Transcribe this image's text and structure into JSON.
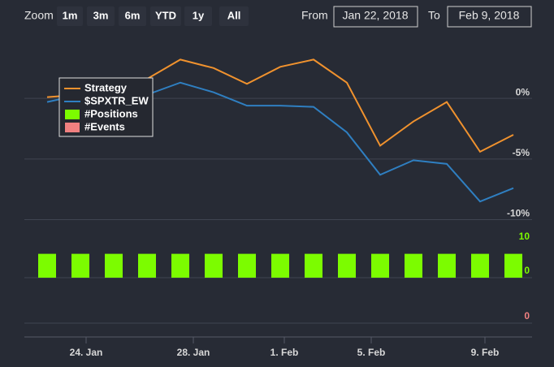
{
  "range_selector": {
    "zoom_label": "Zoom",
    "buttons": [
      "1m",
      "3m",
      "6m",
      "YTD",
      "1y",
      "All"
    ],
    "from_label": "From",
    "from": "Jan 22, 2018",
    "to_label": "To",
    "to": "Feb 9, 2018"
  },
  "chart_data": {
    "type": "line",
    "xticks": [
      "24. Jan",
      "28. Jan",
      "1. Feb",
      "5. Feb",
      "9. Feb"
    ],
    "ylim": [
      -10.5,
      5.3
    ],
    "yticks": [
      {
        "value": 0,
        "label": "0%"
      },
      {
        "value": -5,
        "label": "-5%"
      },
      {
        "value": -10,
        "label": "-10%"
      }
    ],
    "y2lim": [
      0,
      10
    ],
    "y2ticks": [
      10,
      0
    ],
    "y3ticks": [
      0
    ],
    "series": [
      {
        "name": "Strategy",
        "color": "#f0922e",
        "values": [
          0.1,
          0.3,
          0.4,
          1.6,
          3.2,
          2.5,
          1.2,
          2.6,
          3.2,
          1.3,
          -3.9,
          -1.9,
          -0.3,
          -4.4,
          -3.0
        ]
      },
      {
        "name": "$SPXTR_EW",
        "color": "#2f7fc1",
        "values": [
          -0.3,
          0.3,
          0.3,
          0.3,
          1.3,
          0.5,
          -0.6,
          -0.6,
          -0.7,
          -2.8,
          -6.3,
          -5.1,
          -5.4,
          -8.5,
          -7.4
        ]
      },
      {
        "name": "#Positions",
        "color": "#7cfc00",
        "type": "column",
        "axis": "y2",
        "values": [
          7,
          7,
          7,
          7,
          7,
          7,
          7,
          7,
          7,
          7,
          7,
          7,
          7,
          7,
          7
        ]
      },
      {
        "name": "#Events",
        "color": "#f08080",
        "type": "column",
        "axis": "y3"
      }
    ],
    "grid": true
  }
}
